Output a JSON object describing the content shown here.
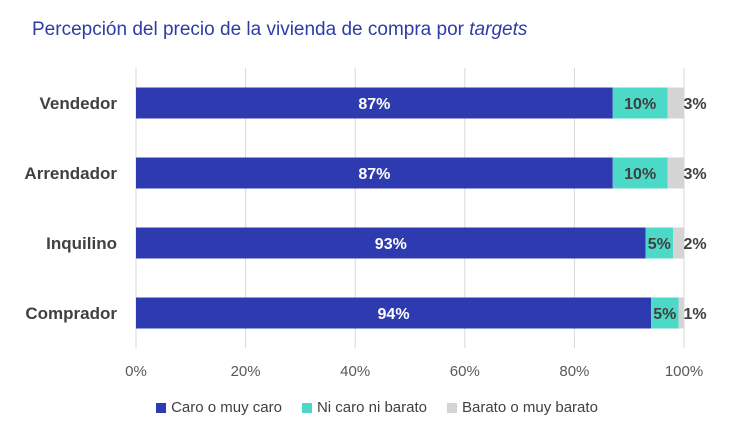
{
  "title": {
    "main": "Percepción del precio de la vivienda de compra por",
    "italic": "targets"
  },
  "colors": {
    "series_0": "#2e3bb0",
    "series_1": "#4dd9c8",
    "series_2": "#d4d4d4"
  },
  "chart_data": {
    "type": "bar",
    "orientation": "horizontal",
    "stacked": true,
    "title": "Percepción del precio de la vivienda de compra por targets",
    "categories": [
      "Vendedor",
      "Arrendador",
      "Inquilino",
      "Comprador"
    ],
    "series": [
      {
        "name": "Caro o muy caro",
        "values": [
          87,
          87,
          93,
          94
        ],
        "labels": [
          "87%",
          "87%",
          "93%",
          "94%"
        ]
      },
      {
        "name": "Ni caro ni barato",
        "values": [
          10,
          10,
          5,
          5
        ],
        "labels": [
          "10%",
          "10%",
          "5%",
          "5%"
        ]
      },
      {
        "name": "Barato o muy barato",
        "values": [
          3,
          3,
          2,
          1
        ],
        "labels": [
          "3%",
          "3%",
          "2%",
          "1%"
        ]
      }
    ],
    "xlim": [
      0,
      100
    ],
    "xticks": [
      "0%",
      "20%",
      "40%",
      "60%",
      "80%",
      "100%"
    ],
    "grid": true,
    "legend": "bottom"
  }
}
